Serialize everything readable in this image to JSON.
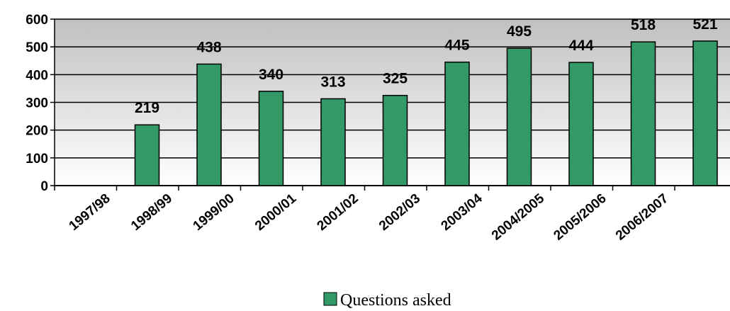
{
  "chart_data": {
    "type": "bar",
    "categories": [
      "1997/98",
      "1998/99",
      "1999/00",
      "2000/01",
      "2001/02",
      "2002/03",
      "2003/04",
      "2004/2005",
      "2005/2006",
      "2006/2007"
    ],
    "series": [
      {
        "name": "Questions asked",
        "values": [
          219,
          438,
          340,
          313,
          325,
          445,
          495,
          444,
          518,
          521
        ]
      }
    ],
    "data_labels": [
      "219",
      "438",
      "340",
      "313",
      "325",
      "445",
      "495",
      "444",
      "518",
      "521"
    ],
    "y_ticks": [
      "0",
      "100",
      "200",
      "300",
      "400",
      "500",
      "600"
    ],
    "ylim": [
      0,
      600
    ],
    "grid": true,
    "legend_position": "bottom-center",
    "colors": {
      "bar": "#339966",
      "plot_top": "#c0c0c0",
      "plot_bottom": "#ffffff"
    }
  },
  "legend": {
    "label": "Questions asked"
  }
}
